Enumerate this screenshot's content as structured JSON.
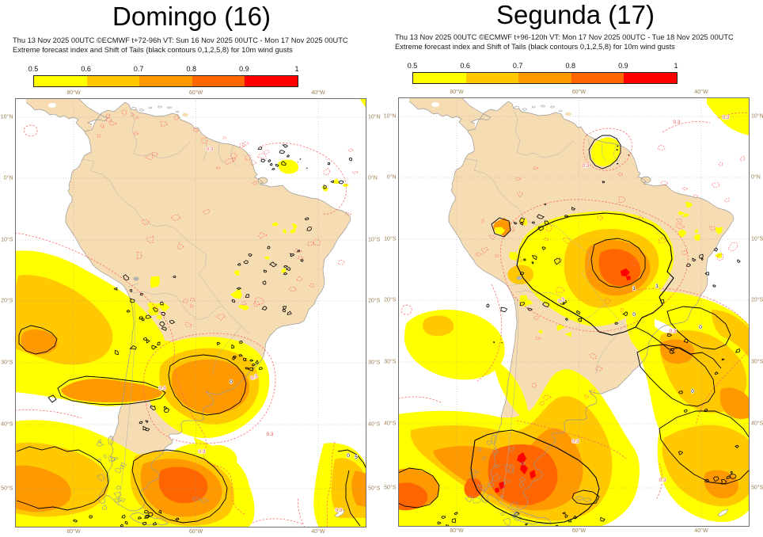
{
  "panels": [
    {
      "id": "domingo",
      "title": "Domingo (16)",
      "meta_line1": "Thu 13 Nov 2025 00UTC ©ECMWF t+72-96h  VT: Sun 16 Nov 2025 00UTC - Mon 17 Nov 2025 00UTC",
      "meta_line2": "Extreme forecast index and Shift of Tails (black contours 0,1,2,5,8) for 10m wind gusts"
    },
    {
      "id": "segunda",
      "title": "Segunda (17)",
      "meta_line1": "Thu 13 Nov 2025 00UTC ©ECMWF t+96-120h  VT: Mon 17 Nov 2025 00UTC - Tue 18 Nov 2025 00UTC",
      "meta_line2": "Extreme forecast index and Shift of Tails (black contours 0,1,2,5,8) for 10m wind gusts"
    }
  ],
  "colorbar": {
    "ticks": [
      "0.5",
      "0.6",
      "0.7",
      "0.8",
      "0.9",
      "1"
    ],
    "colors": [
      "#FFFF00",
      "#FFC800",
      "#FF9900",
      "#FF6600",
      "#FF0000"
    ]
  },
  "axes": {
    "lon_labels": [
      "80°W",
      "60°W",
      "40°W"
    ],
    "lat_labels": [
      "10°N",
      "0°N",
      "10°S",
      "20°S",
      "30°S",
      "40°S",
      "50°S"
    ]
  },
  "map_labels": {
    "efi_contour_value": "0.3",
    "sot_zero": "0",
    "sot_one": "1",
    "sot_five": "5"
  },
  "colors": {
    "land": "#F6DCB2",
    "ocean": "#FFFFFF",
    "efi_contour_red": "#FF6A6A",
    "sot_contour_black": "#000000"
  }
}
